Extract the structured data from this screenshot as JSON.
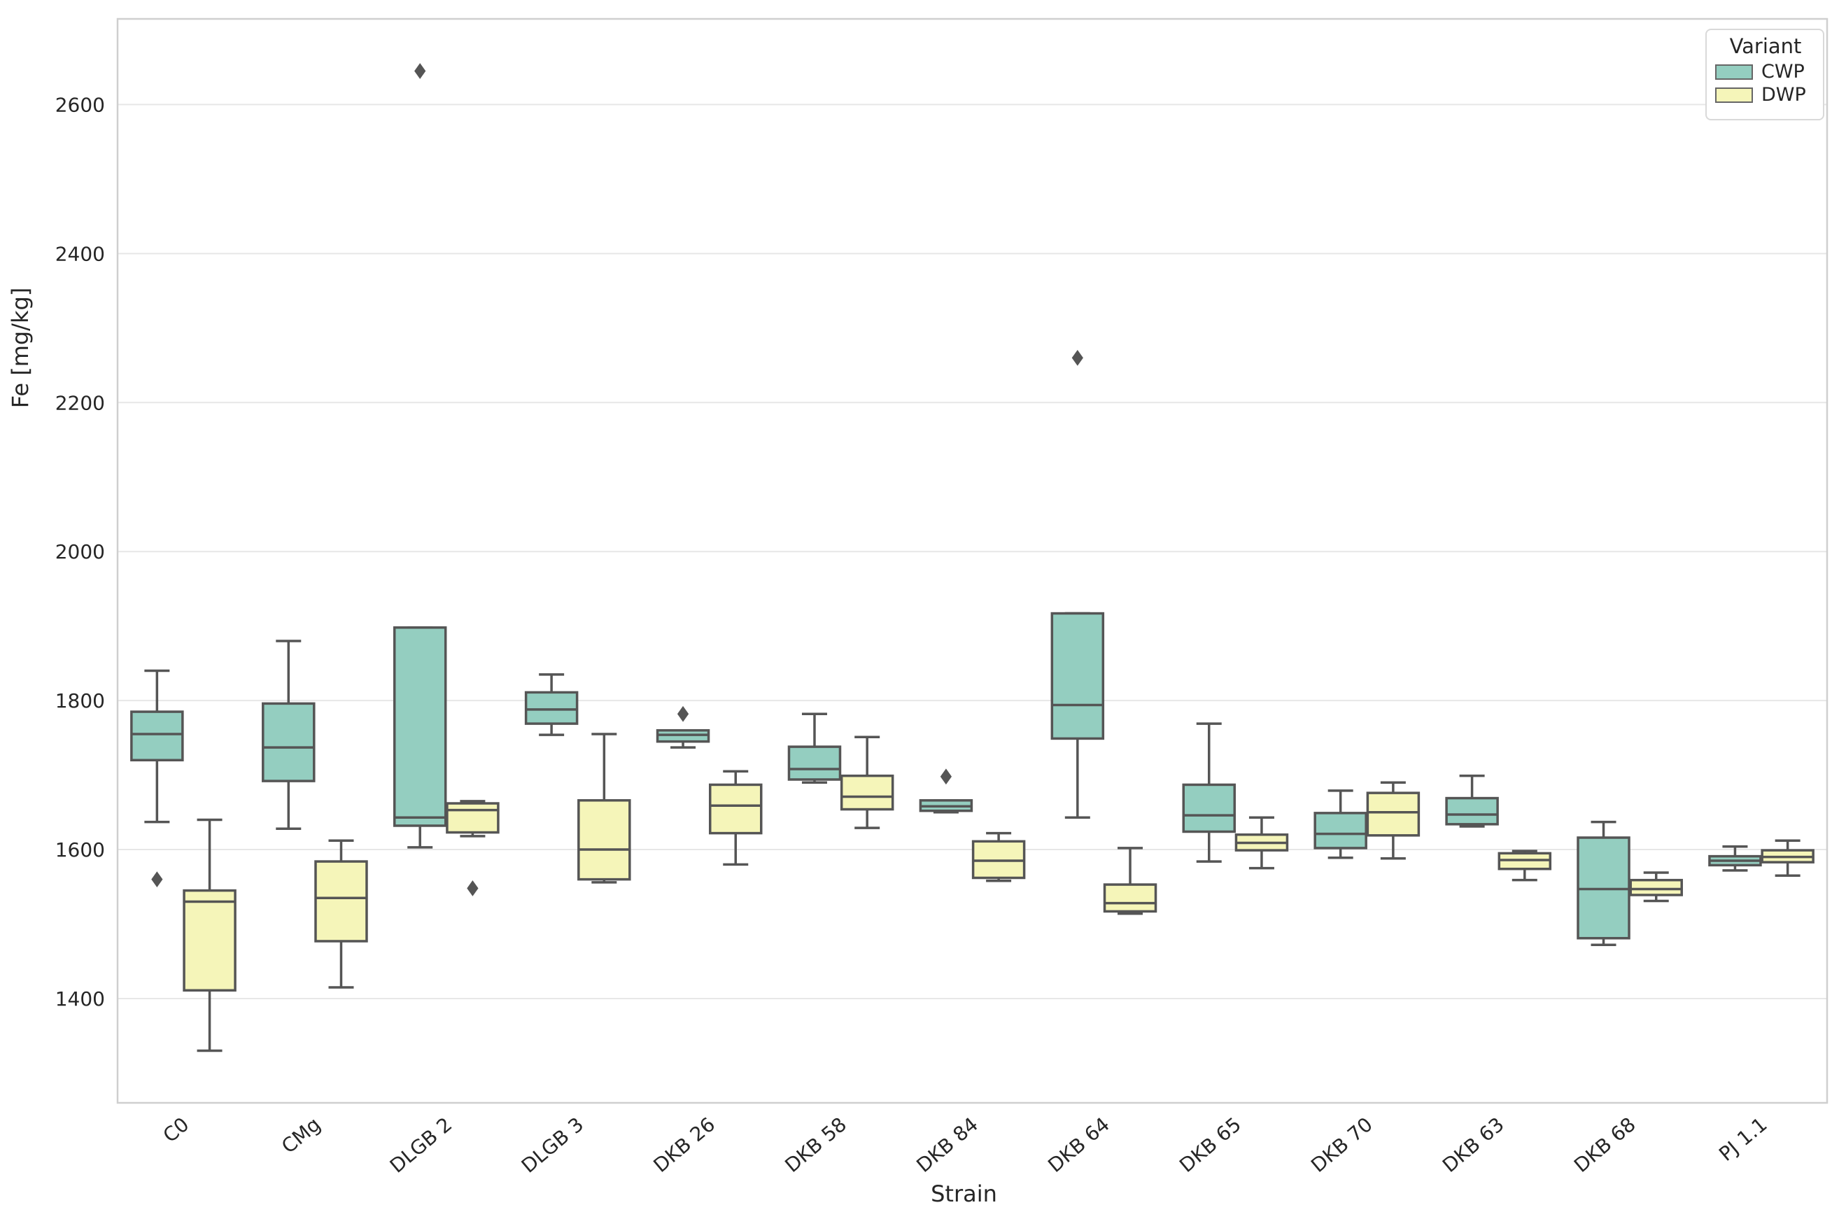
{
  "figure": {
    "xlabel": "Strain",
    "ylabel": "Fe [mg/kg]",
    "legend": {
      "title": "Variant",
      "entries": [
        {
          "label": "CWP",
          "color": "#94cec0"
        },
        {
          "label": "DWP",
          "color": "#f5f5b9"
        }
      ]
    }
  },
  "style": {
    "cwp_fill": "#94cec0",
    "dwp_fill": "#f5f5b9",
    "box_edge": "#555555",
    "flier_color": "#555555",
    "gridline": "#e7e7e7",
    "spine": "#cfcfcf",
    "text_color": "#262626",
    "background": "#ffffff"
  },
  "chart_data": {
    "type": "grouped_boxplot",
    "title": "",
    "xlabel": "Strain",
    "ylabel": "Fe [mg/kg]",
    "categories": [
      "C0",
      "CMg",
      "DLGB 2",
      "DLGB 3",
      "DKB 26",
      "DKB 58",
      "DKB 84",
      "DKB 64",
      "DKB 65",
      "DKB 70",
      "DKB 63",
      "DKB 68",
      "PJ 1.1"
    ],
    "yticks": [
      1400,
      1600,
      1800,
      2000,
      2200,
      2400,
      2600
    ],
    "ylim": [
      1260,
      2715
    ],
    "grid": "horizontal",
    "legend_position": "upper right",
    "series": [
      {
        "name": "CWP",
        "color": "#94cec0",
        "boxes": [
          {
            "whislo": 1637,
            "q1": 1720,
            "med": 1755,
            "q3": 1785,
            "whishi": 1840,
            "fliers": [
              1560
            ]
          },
          {
            "whislo": 1628,
            "q1": 1692,
            "med": 1737,
            "q3": 1796,
            "whishi": 1880,
            "fliers": []
          },
          {
            "whislo": 1603,
            "q1": 1632,
            "med": 1643,
            "q3": 1898,
            "whishi": 1898,
            "fliers": [
              2645
            ]
          },
          {
            "whislo": 1754,
            "q1": 1769,
            "med": 1788,
            "q3": 1811,
            "whishi": 1835,
            "fliers": []
          },
          {
            "whislo": 1737,
            "q1": 1745,
            "med": 1754,
            "q3": 1760,
            "whishi": 1760,
            "fliers": [
              1782
            ]
          },
          {
            "whislo": 1690,
            "q1": 1694,
            "med": 1708,
            "q3": 1738,
            "whishi": 1782,
            "fliers": []
          },
          {
            "whislo": 1650,
            "q1": 1652,
            "med": 1658,
            "q3": 1666,
            "whishi": 1666,
            "fliers": [
              1698
            ]
          },
          {
            "whislo": 1643,
            "q1": 1749,
            "med": 1794,
            "q3": 1917,
            "whishi": 1917,
            "fliers": [
              2260
            ]
          },
          {
            "whislo": 1584,
            "q1": 1624,
            "med": 1646,
            "q3": 1687,
            "whishi": 1769,
            "fliers": []
          },
          {
            "whislo": 1589,
            "q1": 1602,
            "med": 1621,
            "q3": 1649,
            "whishi": 1679,
            "fliers": []
          },
          {
            "whislo": 1631,
            "q1": 1634,
            "med": 1647,
            "q3": 1669,
            "whishi": 1699,
            "fliers": []
          },
          {
            "whislo": 1472,
            "q1": 1481,
            "med": 1547,
            "q3": 1616,
            "whishi": 1637,
            "fliers": []
          },
          {
            "whislo": 1572,
            "q1": 1579,
            "med": 1585,
            "q3": 1591,
            "whishi": 1604,
            "fliers": []
          }
        ]
      },
      {
        "name": "DWP",
        "color": "#f5f5b9",
        "boxes": [
          {
            "whislo": 1330,
            "q1": 1411,
            "med": 1530,
            "q3": 1545,
            "whishi": 1640,
            "fliers": []
          },
          {
            "whislo": 1415,
            "q1": 1477,
            "med": 1535,
            "q3": 1584,
            "whishi": 1612,
            "fliers": []
          },
          {
            "whislo": 1618,
            "q1": 1623,
            "med": 1653,
            "q3": 1662,
            "whishi": 1665,
            "fliers": [
              1548
            ]
          },
          {
            "whislo": 1556,
            "q1": 1560,
            "med": 1600,
            "q3": 1666,
            "whishi": 1755,
            "fliers": []
          },
          {
            "whislo": 1580,
            "q1": 1622,
            "med": 1659,
            "q3": 1687,
            "whishi": 1705,
            "fliers": []
          },
          {
            "whislo": 1629,
            "q1": 1654,
            "med": 1671,
            "q3": 1699,
            "whishi": 1751,
            "fliers": []
          },
          {
            "whislo": 1558,
            "q1": 1562,
            "med": 1585,
            "q3": 1611,
            "whishi": 1622,
            "fliers": []
          },
          {
            "whislo": 1514,
            "q1": 1517,
            "med": 1528,
            "q3": 1553,
            "whishi": 1602,
            "fliers": []
          },
          {
            "whislo": 1575,
            "q1": 1599,
            "med": 1609,
            "q3": 1620,
            "whishi": 1643,
            "fliers": []
          },
          {
            "whislo": 1588,
            "q1": 1619,
            "med": 1650,
            "q3": 1676,
            "whishi": 1690,
            "fliers": []
          },
          {
            "whislo": 1559,
            "q1": 1574,
            "med": 1586,
            "q3": 1595,
            "whishi": 1598,
            "fliers": []
          },
          {
            "whislo": 1531,
            "q1": 1539,
            "med": 1547,
            "q3": 1559,
            "whishi": 1569,
            "fliers": []
          },
          {
            "whislo": 1565,
            "q1": 1583,
            "med": 1590,
            "q3": 1599,
            "whishi": 1612,
            "fliers": []
          }
        ]
      }
    ]
  }
}
